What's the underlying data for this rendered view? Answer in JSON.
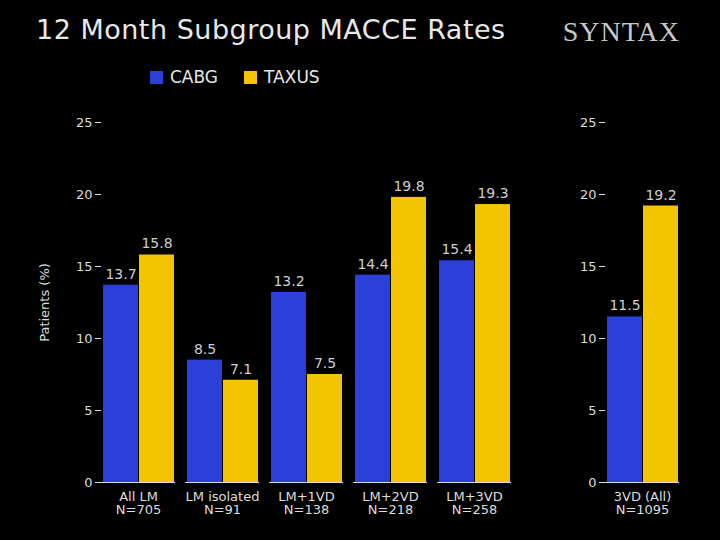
{
  "chart_data": {
    "type": "bar",
    "title": "12 Month Subgroup MACCE Rates",
    "logo": "SYNTAX",
    "categories": [
      "All LM\nN=705",
      "LM isolated\nN=91",
      "LM+1VD\nN=138",
      "LM+2VD\nN=218",
      "LM+3VD\nN=258",
      "3VD (All)\nN=1095"
    ],
    "series": [
      {
        "name": "CABG",
        "color": "#2a40d8",
        "values": [
          13.7,
          8.5,
          13.2,
          14.4,
          15.4,
          11.5
        ]
      },
      {
        "name": "TAXUS",
        "color": "#f5c400",
        "values": [
          15.8,
          7.1,
          7.5,
          19.8,
          19.3,
          19.2
        ]
      }
    ],
    "y_label": "Patients (%)",
    "ylim": [
      0,
      25
    ],
    "yticks": [
      0,
      5,
      10,
      15,
      20,
      25
    ],
    "grid": false,
    "legend": "top",
    "data_labels": true
  }
}
